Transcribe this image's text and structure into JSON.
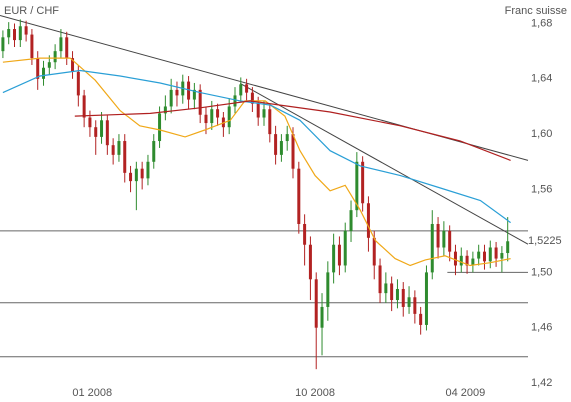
{
  "chart_data": {
    "type": "candlestick",
    "title": "EUR / CHF",
    "subtitle": "Franc suisse",
    "up_color": "#2e8b2e",
    "down_color": "#b22222",
    "open": [
      1.66,
      1.67,
      1.676,
      1.668,
      1.678,
      1.672,
      1.655,
      1.64,
      1.648,
      1.652,
      1.66,
      1.67,
      1.655,
      1.645,
      1.628,
      1.612,
      1.605,
      1.598,
      1.61,
      1.592,
      1.585,
      1.595,
      1.572,
      1.566,
      1.575,
      1.568,
      1.58,
      1.595,
      1.615,
      1.62,
      1.632,
      1.628,
      1.638,
      1.625,
      1.632,
      1.614,
      1.608,
      1.618,
      1.612,
      1.605,
      1.62,
      1.628,
      1.636,
      1.63,
      1.622,
      1.612,
      1.618,
      1.6,
      1.585,
      1.595,
      1.6,
      1.575,
      1.535,
      1.52,
      1.495,
      1.46,
      1.475,
      1.5,
      1.52,
      1.505,
      1.53,
      1.545,
      1.58,
      1.55,
      1.525,
      1.505,
      1.485,
      1.492,
      1.48,
      1.488,
      1.475,
      1.482,
      1.47,
      1.462,
      1.5,
      1.535,
      1.518,
      1.53,
      1.515,
      1.505,
      1.512,
      1.505,
      1.51,
      1.515,
      1.508,
      1.518,
      1.51,
      1.514
    ],
    "high": [
      1.675,
      1.681,
      1.68,
      1.683,
      1.682,
      1.676,
      1.66,
      1.653,
      1.657,
      1.665,
      1.676,
      1.674,
      1.66,
      1.65,
      1.632,
      1.617,
      1.61,
      1.616,
      1.614,
      1.597,
      1.6,
      1.6,
      1.577,
      1.58,
      1.58,
      1.585,
      1.6,
      1.62,
      1.628,
      1.64,
      1.638,
      1.643,
      1.642,
      1.637,
      1.636,
      1.62,
      1.624,
      1.622,
      1.616,
      1.626,
      1.634,
      1.641,
      1.64,
      1.634,
      1.627,
      1.624,
      1.622,
      1.606,
      1.6,
      1.606,
      1.605,
      1.58,
      1.542,
      1.526,
      1.5,
      1.485,
      1.508,
      1.528,
      1.526,
      1.536,
      1.552,
      1.587,
      1.584,
      1.555,
      1.53,
      1.51,
      1.5,
      1.497,
      1.495,
      1.493,
      1.49,
      1.487,
      1.475,
      1.505,
      1.545,
      1.54,
      1.537,
      1.534,
      1.52,
      1.518,
      1.516,
      1.515,
      1.52,
      1.52,
      1.523,
      1.522,
      1.519,
      1.54
    ],
    "low": [
      1.655,
      1.665,
      1.663,
      1.663,
      1.667,
      1.65,
      1.632,
      1.635,
      1.643,
      1.647,
      1.655,
      1.65,
      1.64,
      1.62,
      1.605,
      1.598,
      1.585,
      1.593,
      1.585,
      1.578,
      1.58,
      1.565,
      1.558,
      1.545,
      1.56,
      1.563,
      1.575,
      1.59,
      1.61,
      1.615,
      1.62,
      1.622,
      1.618,
      1.618,
      1.608,
      1.6,
      1.603,
      1.606,
      1.598,
      1.6,
      1.615,
      1.623,
      1.624,
      1.616,
      1.606,
      1.606,
      1.594,
      1.578,
      1.58,
      1.588,
      1.568,
      1.528,
      1.505,
      1.48,
      1.43,
      1.44,
      1.465,
      1.492,
      1.498,
      1.5,
      1.522,
      1.54,
      1.544,
      1.515,
      1.495,
      1.478,
      1.478,
      1.472,
      1.474,
      1.468,
      1.47,
      1.463,
      1.455,
      1.458,
      1.495,
      1.51,
      1.512,
      1.508,
      1.498,
      1.5,
      1.499,
      1.5,
      1.505,
      1.502,
      1.503,
      1.504,
      1.5,
      1.508
    ],
    "close": [
      1.67,
      1.676,
      1.668,
      1.678,
      1.672,
      1.655,
      1.64,
      1.648,
      1.652,
      1.66,
      1.67,
      1.655,
      1.645,
      1.628,
      1.612,
      1.605,
      1.598,
      1.61,
      1.592,
      1.585,
      1.595,
      1.572,
      1.566,
      1.575,
      1.568,
      1.58,
      1.595,
      1.615,
      1.62,
      1.632,
      1.628,
      1.638,
      1.625,
      1.632,
      1.614,
      1.608,
      1.618,
      1.612,
      1.605,
      1.62,
      1.628,
      1.636,
      1.63,
      1.622,
      1.612,
      1.618,
      1.6,
      1.585,
      1.595,
      1.6,
      1.575,
      1.535,
      1.52,
      1.495,
      1.46,
      1.475,
      1.5,
      1.52,
      1.505,
      1.53,
      1.545,
      1.58,
      1.55,
      1.525,
      1.505,
      1.485,
      1.492,
      1.48,
      1.488,
      1.475,
      1.482,
      1.47,
      1.462,
      1.5,
      1.535,
      1.518,
      1.53,
      1.515,
      1.505,
      1.512,
      1.505,
      1.51,
      1.515,
      1.508,
      1.518,
      1.51,
      1.514,
      1.5225
    ],
    "overlays": [
      {
        "color": "#f0a818",
        "x": [
          0,
          6.4,
          11.6,
          15.9,
          20.2,
          23.6,
          27.1,
          31.4,
          34.8,
          39.2,
          41.7,
          45.2,
          48.6,
          51.2,
          53.8,
          56.4,
          59,
          61.6,
          64.2,
          67.6,
          70.2,
          72.8,
          76.2,
          80.5,
          84,
          87.5
        ],
        "values": [
          1.652,
          1.655,
          1.655,
          1.639,
          1.617,
          1.606,
          1.603,
          1.598,
          1.603,
          1.61,
          1.624,
          1.624,
          1.613,
          1.588,
          1.57,
          1.559,
          1.563,
          1.545,
          1.523,
          1.51,
          1.505,
          1.509,
          1.512,
          1.505,
          1.507,
          1.51
        ]
      },
      {
        "color": "#2a9fd6",
        "x": [
          0,
          6.4,
          13.3,
          20.2,
          27.1,
          34,
          40.9,
          46.1,
          51.2,
          56.4,
          61.6,
          68.5,
          75.4,
          82.3,
          87.5
        ],
        "values": [
          1.63,
          1.642,
          1.646,
          1.642,
          1.637,
          1.63,
          1.624,
          1.621,
          1.61,
          1.588,
          1.577,
          1.57,
          1.561,
          1.552,
          1.536
        ]
      },
      {
        "color": "#b02020",
        "x": [
          12.4,
          25.4,
          34,
          42.6,
          47.8,
          56.4,
          68.5,
          78.8,
          87.5
        ],
        "values": [
          1.613,
          1.615,
          1.619,
          1.624,
          1.621,
          1.616,
          1.606,
          1.595,
          1.581
        ]
      }
    ],
    "trendlines": [
      {
        "color": "#444444",
        "x": [
          -0.5,
          90.5
        ],
        "values": [
          1.6858,
          1.581
        ]
      },
      {
        "color": "#444444",
        "x": [
          40.9,
          90.5
        ],
        "values": [
          1.6367,
          1.5204
        ]
      }
    ],
    "levels": [
      1.53,
      1.478,
      1.439
    ],
    "support": {
      "value": 1.5,
      "x": [
        76.6,
        90.5
      ]
    },
    "last_price": {
      "value": 1.5225,
      "label": "1,5225"
    },
    "xlim": [
      -0.5,
      90.5
    ],
    "ylim": [
      1.42,
      1.697
    ],
    "xticks": [
      {
        "value": 15.4,
        "label": "01 2008"
      },
      {
        "value": 53.8,
        "label": "10 2008"
      },
      {
        "value": 79.7,
        "label": "04 2009"
      }
    ],
    "yticks": [
      {
        "value": 1.68,
        "label": "1,68"
      },
      {
        "value": 1.64,
        "label": "1,64"
      },
      {
        "value": 1.6,
        "label": "1,60"
      },
      {
        "value": 1.56,
        "label": "1,56"
      },
      {
        "value": 1.5,
        "label": "1,50"
      },
      {
        "value": 1.46,
        "label": "1,46"
      },
      {
        "value": 1.42,
        "label": "1,42"
      }
    ]
  }
}
